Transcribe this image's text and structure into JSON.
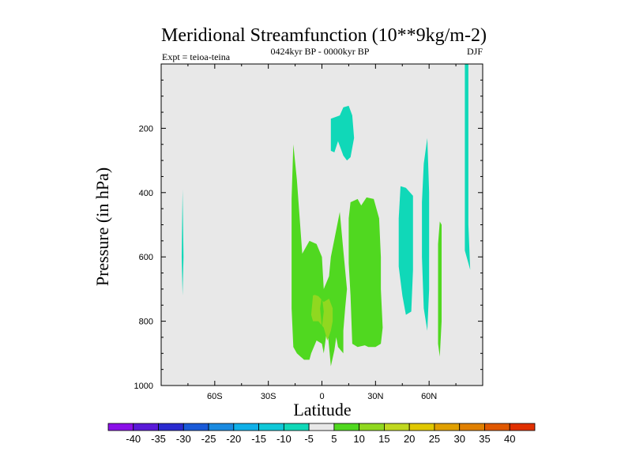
{
  "chart_data": {
    "type": "contour",
    "title": "Meridional Streamfunction (10**9kg/m-2)",
    "subtitle_left": "Expt = teioa-teina",
    "subtitle_center": "0424kyr BP - 0000kyr BP",
    "subtitle_right": "DJF",
    "xlabel": "Latitude",
    "ylabel": "Pressure (in hPa)",
    "xlim": [
      -90,
      90
    ],
    "ylim": [
      1000,
      0
    ],
    "x_ticks": [
      {
        "value": -60,
        "label": "60S"
      },
      {
        "value": -30,
        "label": "30S"
      },
      {
        "value": 0,
        "label": "0"
      },
      {
        "value": 30,
        "label": "30N"
      },
      {
        "value": 60,
        "label": "60N"
      }
    ],
    "y_ticks": [
      {
        "value": 200,
        "label": "200"
      },
      {
        "value": 400,
        "label": "400"
      },
      {
        "value": 600,
        "label": "600"
      },
      {
        "value": 800,
        "label": "800"
      },
      {
        "value": 1000,
        "label": "1000"
      }
    ],
    "background_color": "#e8e8e8",
    "colorbar": {
      "colors": [
        "#8a10e8",
        "#5a1ad8",
        "#2a2ad0",
        "#1a5ad8",
        "#1a8ae0",
        "#10b0e8",
        "#10c8d8",
        "#10d8b8",
        "#e8e8e8",
        "#50d820",
        "#90d820",
        "#c0d820",
        "#e0c800",
        "#e0a000",
        "#e08000",
        "#e05800",
        "#e03000"
      ],
      "labels": [
        "-40",
        "-35",
        "-30",
        "-25",
        "-20",
        "-15",
        "-10",
        "-5",
        "5",
        "10",
        "15",
        "20",
        "25",
        "30",
        "35",
        "40"
      ]
    },
    "regions": [
      {
        "name": "neg-5-70S",
        "color": "#10d8b8",
        "points": [
          [
            -78,
            390
          ],
          [
            -77.5,
            600
          ],
          [
            -78,
            720
          ],
          [
            -78.5,
            600
          ]
        ]
      },
      {
        "name": "neg-5-upper-eq",
        "color": "#10d8b8",
        "points": [
          [
            5,
            270
          ],
          [
            5,
            170
          ],
          [
            10,
            160
          ],
          [
            12,
            135
          ],
          [
            15,
            130
          ],
          [
            17,
            160
          ],
          [
            18,
            230
          ],
          [
            16,
            290
          ],
          [
            14,
            300
          ],
          [
            12,
            285
          ],
          [
            9,
            240
          ],
          [
            7,
            275
          ]
        ]
      },
      {
        "name": "neg-5-45N",
        "color": "#10d8b8",
        "points": [
          [
            43,
            480
          ],
          [
            44,
            380
          ],
          [
            47,
            385
          ],
          [
            51,
            410
          ],
          [
            51,
            500
          ],
          [
            51,
            640
          ],
          [
            50,
            770
          ],
          [
            47,
            780
          ],
          [
            45,
            720
          ],
          [
            43,
            630
          ]
        ]
      },
      {
        "name": "neg-5-60N",
        "color": "#10d8b8",
        "points": [
          [
            56,
            430
          ],
          [
            57,
            310
          ],
          [
            59,
            230
          ],
          [
            60,
            400
          ],
          [
            60,
            700
          ],
          [
            59,
            830
          ],
          [
            57,
            760
          ],
          [
            56,
            600
          ]
        ]
      },
      {
        "name": "neg-5-80N",
        "color": "#10d8b8",
        "points": [
          [
            80,
            0
          ],
          [
            82,
            0
          ],
          [
            82,
            150
          ],
          [
            82,
            500
          ],
          [
            83,
            640
          ],
          [
            80,
            580
          ],
          [
            80,
            300
          ]
        ]
      },
      {
        "name": "pos-5-20S",
        "color": "#50d820",
        "points": [
          [
            -17,
            420
          ],
          [
            -16,
            250
          ],
          [
            -14,
            360
          ],
          [
            -11,
            590
          ],
          [
            -7,
            550
          ],
          [
            -3,
            560
          ],
          [
            0,
            600
          ],
          [
            1,
            700
          ],
          [
            4,
            660
          ],
          [
            5,
            600
          ],
          [
            7,
            545
          ],
          [
            10,
            460
          ],
          [
            12,
            580
          ],
          [
            14,
            700
          ],
          [
            13,
            760
          ],
          [
            12,
            830
          ],
          [
            12,
            900
          ],
          [
            9,
            880
          ],
          [
            8,
            850
          ],
          [
            7,
            890
          ],
          [
            5,
            940
          ],
          [
            3,
            820
          ],
          [
            1,
            900
          ],
          [
            0,
            870
          ],
          [
            -3,
            860
          ],
          [
            -6,
            900
          ],
          [
            -7,
            920
          ],
          [
            -10,
            920
          ],
          [
            -14,
            900
          ],
          [
            -16,
            880
          ],
          [
            -17,
            760
          ],
          [
            -17,
            600
          ]
        ]
      },
      {
        "name": "pos-5-20N",
        "color": "#50d820",
        "points": [
          [
            15,
            480
          ],
          [
            16,
            430
          ],
          [
            20,
            420
          ],
          [
            22,
            440
          ],
          [
            25,
            415
          ],
          [
            29,
            420
          ],
          [
            32,
            480
          ],
          [
            33,
            600
          ],
          [
            33,
            700
          ],
          [
            34,
            820
          ],
          [
            33,
            870
          ],
          [
            30,
            880
          ],
          [
            26,
            880
          ],
          [
            24,
            875
          ],
          [
            20,
            880
          ],
          [
            17,
            870
          ],
          [
            16,
            720
          ],
          [
            15,
            620
          ]
        ]
      },
      {
        "name": "pos-5-65N",
        "color": "#50d820",
        "points": [
          [
            66,
            490
          ],
          [
            67,
            500
          ],
          [
            67,
            650
          ],
          [
            67,
            800
          ],
          [
            66,
            910
          ],
          [
            65,
            870
          ],
          [
            65,
            700
          ],
          [
            65,
            560
          ]
        ]
      },
      {
        "name": "pos-10-eq",
        "color": "#90d820",
        "points": [
          [
            -5,
            720
          ],
          [
            -4,
            718
          ],
          [
            -2,
            722
          ],
          [
            1,
            740
          ],
          [
            4,
            730
          ],
          [
            6,
            760
          ],
          [
            6,
            800
          ],
          [
            5,
            830
          ],
          [
            3,
            860
          ],
          [
            1,
            820
          ],
          [
            -2,
            800
          ],
          [
            -5,
            800
          ],
          [
            -6,
            780
          ]
        ]
      },
      {
        "name": "pos-5-eq-notch",
        "color": "#50d820",
        "points": [
          [
            -1,
            760
          ],
          [
            0,
            720
          ],
          [
            1,
            770
          ],
          [
            0,
            820
          ]
        ]
      }
    ]
  }
}
